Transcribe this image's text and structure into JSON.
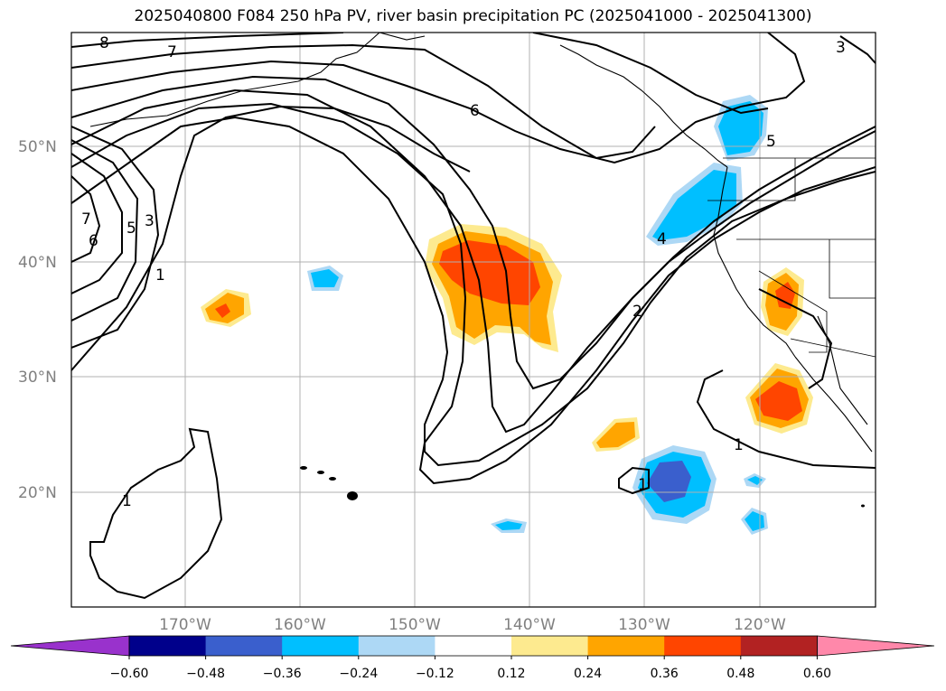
{
  "title": "2025040800 F084 250 hPa PV, river basin precipitation PC (2025041000 - 2025041300)",
  "map": {
    "lon_labels": [
      "170°W",
      "160°W",
      "150°W",
      "140°W",
      "130°W",
      "120°W"
    ],
    "lat_labels": [
      "50°N",
      "40°N",
      "30°N",
      "20°N"
    ]
  },
  "contour_labels": [
    "8",
    "7",
    "6",
    "5",
    "3",
    "1",
    "6",
    "7",
    "5",
    "3",
    "4",
    "2",
    "1",
    "1",
    "1"
  ],
  "colorbar": {
    "levels": [
      "−0.60",
      "−0.48",
      "−0.36",
      "−0.24",
      "−0.12",
      "0.12",
      "0.24",
      "0.36",
      "0.48",
      "0.60"
    ],
    "colors": [
      "#9932cc",
      "#00008b",
      "#3a5fcd",
      "#00bfff",
      "#add8f5",
      "#ffffff",
      "#fdea8f",
      "#ffa500",
      "#ff4500",
      "#b22222",
      "#ff88aa"
    ]
  }
}
